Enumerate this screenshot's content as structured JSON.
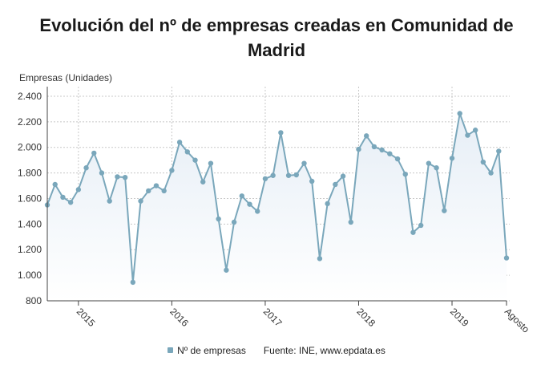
{
  "colors": {
    "series": "#7aa7bb",
    "area_top": "#e6eef6",
    "area_bottom": "#ffffff",
    "grid": "#c8c8c8",
    "axis": "#444444"
  },
  "header": {
    "title_line1": "Evolución del nº de empresas creadas en Comunidad de",
    "title_line2": "Madrid"
  },
  "legend": {
    "series_label": "Nº de empresas",
    "source": "Fuente: INE, www.epdata.es"
  },
  "chart_data": {
    "type": "line",
    "title": "Evolución del nº de empresas creadas en Comunidad de Madrid",
    "ylabel": "Empresas (Unidades)",
    "xlabel": "",
    "ylim": [
      800,
      2400
    ],
    "yticks": [
      800,
      1000,
      1200,
      1400,
      1600,
      1800,
      2000,
      2200,
      2400
    ],
    "ytick_labels": [
      "800",
      "1.000",
      "1.200",
      "1.400",
      "1.600",
      "1.800",
      "2.000",
      "2.200",
      "2.400"
    ],
    "x_start": "2014-09",
    "x_end": "2019-08",
    "x_tick_labels": [
      {
        "date": "2015-01",
        "label": "2015"
      },
      {
        "date": "2016-01",
        "label": "2016"
      },
      {
        "date": "2017-01",
        "label": "2017"
      },
      {
        "date": "2018-01",
        "label": "2018"
      },
      {
        "date": "2019-01",
        "label": "2019"
      },
      {
        "date": "2019-08",
        "label": "Agosto"
      }
    ],
    "grid": true,
    "legend_position": "bottom",
    "series": [
      {
        "name": "Nº de empresas",
        "x": [
          "2014-09",
          "2014-10",
          "2014-11",
          "2014-12",
          "2015-01",
          "2015-02",
          "2015-03",
          "2015-04",
          "2015-05",
          "2015-06",
          "2015-07",
          "2015-08",
          "2015-09",
          "2015-10",
          "2015-11",
          "2015-12",
          "2016-01",
          "2016-02",
          "2016-03",
          "2016-04",
          "2016-05",
          "2016-06",
          "2016-07",
          "2016-08",
          "2016-09",
          "2016-10",
          "2016-11",
          "2016-12",
          "2017-01",
          "2017-02",
          "2017-03",
          "2017-04",
          "2017-05",
          "2017-06",
          "2017-07",
          "2017-08",
          "2017-09",
          "2017-10",
          "2017-11",
          "2017-12",
          "2018-01",
          "2018-02",
          "2018-03",
          "2018-04",
          "2018-05",
          "2018-06",
          "2018-07",
          "2018-08",
          "2018-09",
          "2018-10",
          "2018-11",
          "2018-12",
          "2019-01",
          "2019-02",
          "2019-03",
          "2019-04",
          "2019-05",
          "2019-06",
          "2019-07",
          "2019-08"
        ],
        "values": [
          1550,
          1710,
          1610,
          1570,
          1670,
          1840,
          1955,
          1800,
          1580,
          1770,
          1765,
          945,
          1580,
          1660,
          1700,
          1660,
          1820,
          2040,
          1965,
          1900,
          1730,
          1875,
          1440,
          1040,
          1415,
          1620,
          1555,
          1500,
          1755,
          1780,
          2115,
          1780,
          1785,
          1875,
          1735,
          1130,
          1560,
          1710,
          1775,
          1415,
          1985,
          2090,
          2005,
          1980,
          1950,
          1910,
          1790,
          1335,
          1390,
          1875,
          1840,
          1505,
          1915,
          2265,
          2095,
          2135,
          1885,
          1800,
          1970,
          1135
        ]
      }
    ]
  }
}
